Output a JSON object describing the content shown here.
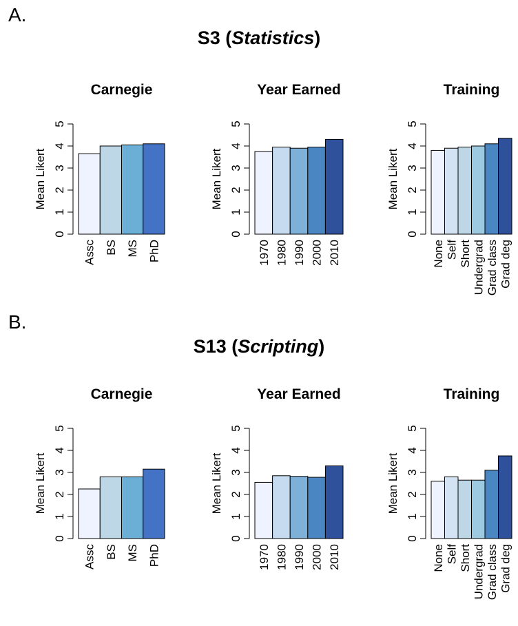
{
  "panels": [
    {
      "letter": "A.",
      "title_main": "S3 (",
      "title_italic": "Statistics",
      "title_close": ")",
      "ylabel": "Mean Likert"
    },
    {
      "letter": "B.",
      "title_main": "S13 (",
      "title_italic": "Scripting",
      "title_close": ")",
      "ylabel": "Mean Likert"
    }
  ],
  "chart_data": [
    {
      "type": "bar",
      "panel": "A",
      "title": "Carnegie",
      "ylabel": "Mean Likert",
      "ylim": [
        0,
        5
      ],
      "yticks": [
        0,
        1,
        2,
        3,
        4,
        5
      ],
      "categories": [
        "Assc",
        "BS",
        "MS",
        "PhD"
      ],
      "values": [
        3.65,
        4.0,
        4.05,
        4.1
      ],
      "colors": [
        "#eff3ff",
        "#bdd7e7",
        "#6baed6",
        "#4472c4"
      ]
    },
    {
      "type": "bar",
      "panel": "A",
      "title": "Year Earned",
      "ylabel": "Mean Likert",
      "ylim": [
        0,
        5
      ],
      "yticks": [
        0,
        1,
        2,
        3,
        4,
        5
      ],
      "categories": [
        "1970",
        "1980",
        "1990",
        "2000",
        "2010"
      ],
      "values": [
        3.75,
        3.95,
        3.9,
        3.95,
        4.3
      ],
      "colors": [
        "#eff3ff",
        "#c6dbef",
        "#7fb0d8",
        "#4a86c2",
        "#2f519c"
      ]
    },
    {
      "type": "bar",
      "panel": "A",
      "title": "Training",
      "ylabel": "Mean Likert",
      "ylim": [
        0,
        5
      ],
      "yticks": [
        0,
        1,
        2,
        3,
        4,
        5
      ],
      "categories": [
        "None",
        "Self",
        "Short",
        "Undergrad",
        "Grad class",
        "Grad deg"
      ],
      "values": [
        3.8,
        3.9,
        3.95,
        4.0,
        4.1,
        4.35
      ],
      "colors": [
        "#eff3ff",
        "#d3e3f3",
        "#bdd7e7",
        "#9ecae1",
        "#4a86c2",
        "#2f519c"
      ]
    },
    {
      "type": "bar",
      "panel": "B",
      "title": "Carnegie",
      "ylabel": "Mean Likert",
      "ylim": [
        0,
        5
      ],
      "yticks": [
        0,
        1,
        2,
        3,
        4,
        5
      ],
      "categories": [
        "Assc",
        "BS",
        "MS",
        "PhD"
      ],
      "values": [
        2.25,
        2.8,
        2.8,
        3.15
      ],
      "colors": [
        "#eff3ff",
        "#bdd7e7",
        "#6baed6",
        "#4472c4"
      ]
    },
    {
      "type": "bar",
      "panel": "B",
      "title": "Year Earned",
      "ylabel": "Mean Likert",
      "ylim": [
        0,
        5
      ],
      "yticks": [
        0,
        1,
        2,
        3,
        4,
        5
      ],
      "categories": [
        "1970",
        "1980",
        "1990",
        "2000",
        "2010"
      ],
      "values": [
        2.55,
        2.85,
        2.82,
        2.78,
        3.3
      ],
      "colors": [
        "#eff3ff",
        "#c6dbef",
        "#7fb0d8",
        "#4a86c2",
        "#2f519c"
      ]
    },
    {
      "type": "bar",
      "panel": "B",
      "title": "Training",
      "ylabel": "Mean Likert",
      "ylim": [
        0,
        5
      ],
      "yticks": [
        0,
        1,
        2,
        3,
        4,
        5
      ],
      "categories": [
        "None",
        "Self",
        "Short",
        "Undergrad",
        "Grad class",
        "Grad deg"
      ],
      "values": [
        2.6,
        2.8,
        2.65,
        2.65,
        3.1,
        3.75
      ],
      "colors": [
        "#eff3ff",
        "#d3e3f3",
        "#bdd7e7",
        "#9ecae1",
        "#4a86c2",
        "#2f519c"
      ]
    }
  ]
}
